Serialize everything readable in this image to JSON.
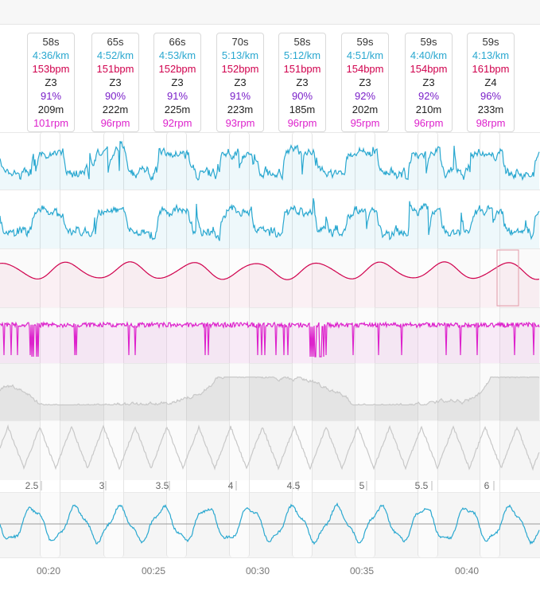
{
  "intervals": [
    {
      "duration": "58s",
      "pace": "4:36/km",
      "hr": "153bpm",
      "zone": "Z3",
      "hr_pct": "91%",
      "distance": "209m",
      "cadence": "101rpm"
    },
    {
      "duration": "65s",
      "pace": "4:52/km",
      "hr": "151bpm",
      "zone": "Z3",
      "hr_pct": "90%",
      "distance": "222m",
      "cadence": "96rpm"
    },
    {
      "duration": "66s",
      "pace": "4:53/km",
      "hr": "152bpm",
      "zone": "Z3",
      "hr_pct": "91%",
      "distance": "225m",
      "cadence": "92rpm"
    },
    {
      "duration": "70s",
      "pace": "5:13/km",
      "hr": "152bpm",
      "zone": "Z3",
      "hr_pct": "91%",
      "distance": "223m",
      "cadence": "93rpm"
    },
    {
      "duration": "58s",
      "pace": "5:12/km",
      "hr": "151bpm",
      "zone": "Z3",
      "hr_pct": "90%",
      "distance": "185m",
      "cadence": "96rpm"
    },
    {
      "duration": "59s",
      "pace": "4:51/km",
      "hr": "154bpm",
      "zone": "Z3",
      "hr_pct": "92%",
      "distance": "202m",
      "cadence": "95rpm"
    },
    {
      "duration": "59s",
      "pace": "4:40/km",
      "hr": "154bpm",
      "zone": "Z3",
      "hr_pct": "92%",
      "distance": "210m",
      "cadence": "96rpm"
    },
    {
      "duration": "59s",
      "pace": "4:13/km",
      "hr": "161bpm",
      "zone": "Z4",
      "hr_pct": "96%",
      "distance": "233m",
      "cadence": "98rpm"
    }
  ],
  "km_ticks": [
    "2.5",
    "3",
    "3.5",
    "4",
    "4.5",
    "5",
    "5.5",
    "6"
  ],
  "time_ticks": [
    "00:20",
    "00:25",
    "00:30",
    "00:35",
    "00:40"
  ],
  "colors": {
    "pace": "#2aa8d0",
    "heart_rate": "#d0004d",
    "cadence": "#dd22cc",
    "elevation": "#bdbdbd",
    "zone_pct": "#7a1fc9"
  }
}
